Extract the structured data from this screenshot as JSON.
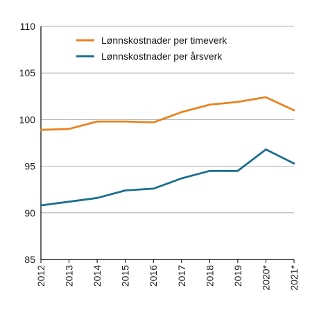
{
  "chart_data": {
    "type": "line",
    "title": "",
    "xlabel": "",
    "ylabel": "",
    "categories": [
      "2012",
      "2013",
      "2014",
      "2015",
      "2016",
      "2017",
      "2018",
      "2019",
      "2020*",
      "2021*"
    ],
    "ylim": [
      85,
      110
    ],
    "yticks": [
      85,
      90,
      95,
      100,
      105,
      110
    ],
    "grid": "horizontal",
    "legend_position": "top-center",
    "series": [
      {
        "name": "Lønnskostnader per timeverk",
        "color": "#e8831f",
        "values": [
          98.9,
          99.0,
          99.8,
          99.8,
          99.7,
          100.8,
          101.6,
          101.9,
          102.4,
          101.0
        ]
      },
      {
        "name": "Lønnskostnader per årsverk",
        "color": "#1b6f8e",
        "values": [
          90.8,
          91.2,
          91.6,
          92.4,
          92.6,
          93.7,
          94.5,
          94.5,
          96.8,
          95.3
        ]
      }
    ]
  }
}
